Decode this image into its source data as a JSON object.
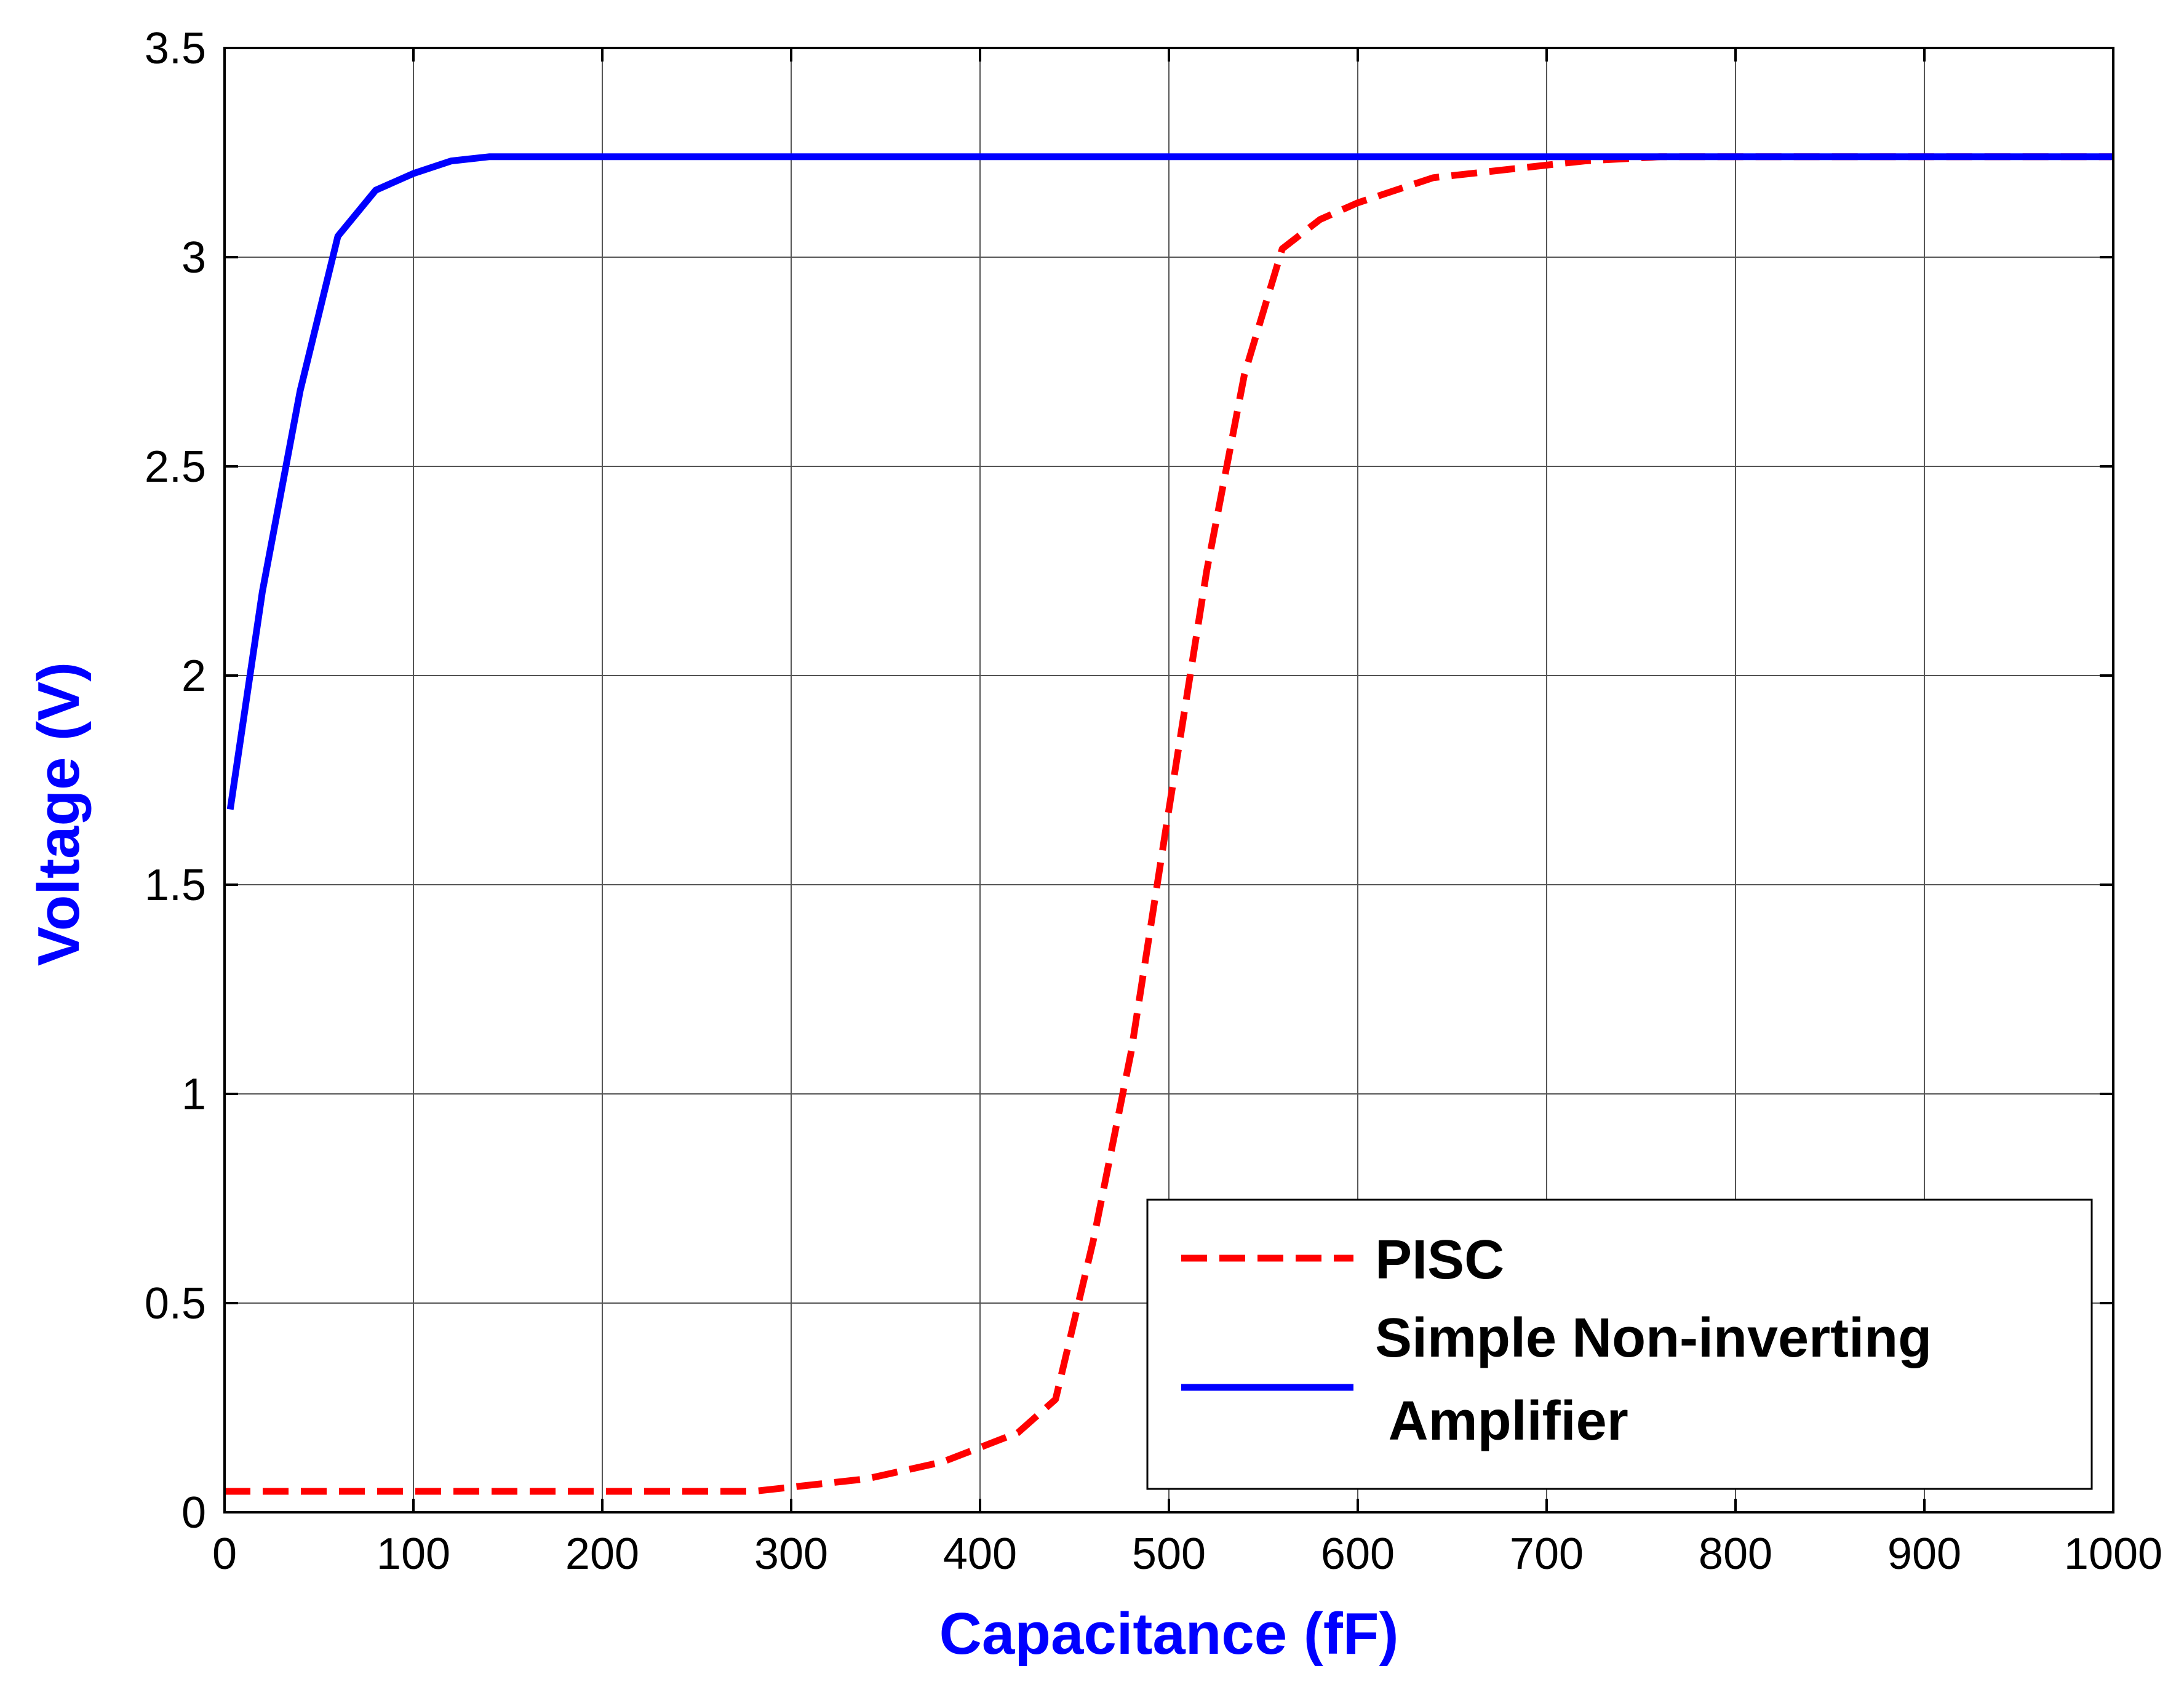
{
  "chart_data": {
    "type": "line",
    "title": "",
    "xlabel": "Capacitance (fF)",
    "ylabel": "Voltage (V)",
    "xlim": [
      0,
      1000
    ],
    "ylim": [
      0,
      3.5
    ],
    "grid": true,
    "x_ticks": [
      "0",
      "100",
      "200",
      "300",
      "400",
      "500",
      "600",
      "700",
      "800",
      "900",
      "1000"
    ],
    "y_ticks": [
      "0",
      "0.5",
      "1",
      "1.5",
      "2",
      "2.5",
      "3",
      "3.5"
    ],
    "legend_position": "bottom-right",
    "label_color": "#0000FF",
    "series": [
      {
        "name": "PISC",
        "legend_lines": [
          "PISC"
        ],
        "color": "#FF0000",
        "style": "dashed",
        "x": [
          0,
          100,
          200,
          280,
          300,
          340,
          380,
          420,
          440,
          460,
          480,
          500,
          520,
          540,
          560,
          580,
          600,
          640,
          680,
          720,
          760,
          800,
          1000
        ],
        "y": [
          0.05,
          0.05,
          0.05,
          0.05,
          0.06,
          0.08,
          0.12,
          0.19,
          0.27,
          0.65,
          1.1,
          1.68,
          2.25,
          2.72,
          3.02,
          3.09,
          3.13,
          3.19,
          3.21,
          3.23,
          3.24,
          3.24,
          3.24
        ]
      },
      {
        "name": "Simple Non-inverting Amplifier",
        "legend_lines": [
          "Simple Non-inverting",
          " Amplifier"
        ],
        "color": "#0000FF",
        "style": "solid",
        "x": [
          3,
          20,
          40,
          60,
          80,
          100,
          120,
          140,
          200,
          400,
          600,
          800,
          1000
        ],
        "y": [
          1.68,
          2.2,
          2.68,
          3.05,
          3.16,
          3.2,
          3.23,
          3.24,
          3.24,
          3.24,
          3.24,
          3.24,
          3.24
        ]
      }
    ]
  }
}
